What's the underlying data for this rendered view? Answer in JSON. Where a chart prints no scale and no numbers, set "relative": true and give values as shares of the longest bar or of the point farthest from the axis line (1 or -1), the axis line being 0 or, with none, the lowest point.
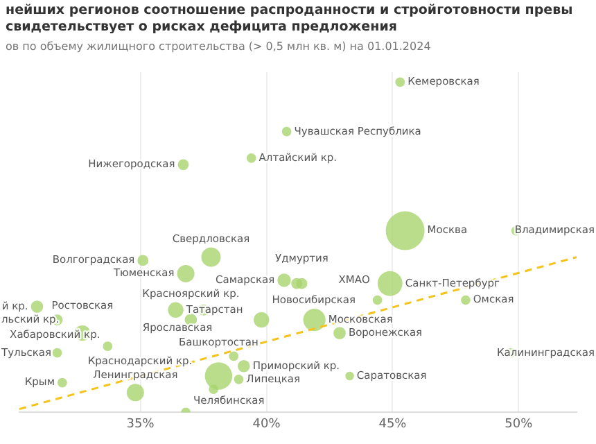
{
  "chart_data": {
    "type": "bubble",
    "title": "нейших регионов соотношение распроданности и стройготовности превы свидетельствует о рисках дефицита предложения",
    "subtitle": "ов по объему жилищного строительства (> 0,5 млн кв. м) на 01.01.2024",
    "relative": true,
    "xlim": [
      30.2,
      52.3
    ],
    "xticks": [
      {
        "value": 35,
        "label": "35%"
      },
      {
        "value": 40,
        "label": "40%"
      },
      {
        "value": 45,
        "label": "45%"
      },
      {
        "value": 50,
        "label": "50%"
      }
    ],
    "grid": "x",
    "legend": false,
    "series": [
      {
        "type": "bubble",
        "color": "#a9d46f",
        "x": [
          45.3,
          40.8,
          39.4,
          36.7,
          45.5,
          49.9,
          35.1,
          37.8,
          36.8,
          40.7,
          41.2,
          41.4,
          44.9,
          44.4,
          47.9,
          36.4,
          37.5,
          37.0,
          39.8,
          41.9,
          42.9,
          30.9,
          31.7,
          32.7,
          33.7,
          31.7,
          38.7,
          39.1,
          49.7,
          43.3,
          38.1,
          38.9,
          37.9,
          31.9,
          34.8,
          36.8
        ],
        "values": [
          1.0,
          0.85,
          0.77,
          0.75,
          0.55,
          0.55,
          0.46,
          0.47,
          0.42,
          0.4,
          0.39,
          0.39,
          0.39,
          0.34,
          0.34,
          0.31,
          0.31,
          0.28,
          0.28,
          0.28,
          0.24,
          0.32,
          0.28,
          0.24,
          0.2,
          0.18,
          0.17,
          0.14,
          0.18,
          0.11,
          0.11,
          0.1,
          0.07,
          0.09,
          0.06,
          0.0
        ],
        "sizes": [
          0.06,
          0.06,
          0.06,
          0.08,
          1.0,
          0.06,
          0.08,
          0.25,
          0.2,
          0.12,
          0.08,
          0.08,
          0.41,
          0.06,
          0.06,
          0.16,
          0.08,
          0.1,
          0.16,
          0.33,
          0.1,
          0.1,
          0.08,
          0.16,
          0.06,
          0.06,
          0.06,
          0.1,
          0.06,
          0.05,
          0.5,
          0.06,
          0.06,
          0.06,
          0.2,
          0.06
        ]
      },
      {
        "type": "line",
        "color": "#f5c31a",
        "line_style": "dashed",
        "marker": "none",
        "x": [
          30.2,
          52.3
        ],
        "values": [
          0.01,
          0.47
        ]
      }
    ],
    "annotations": [
      {
        "text": "Кемеровская",
        "x": 45.3,
        "y": 1.0
      },
      {
        "text": "Чувашская Республика",
        "x": 40.8,
        "y": 0.85
      },
      {
        "text": "Алтайский кр.",
        "x": 39.4,
        "y": 0.77
      },
      {
        "text": "Нижегородская",
        "x": 36.7,
        "y": 0.75
      },
      {
        "text": "Москва",
        "x": 45.5,
        "y": 0.55
      },
      {
        "text": "Владимирская",
        "x": 49.9,
        "y": 0.55
      },
      {
        "text": "Волгоградская",
        "x": 35.1,
        "y": 0.46
      },
      {
        "text": "Свердловская",
        "x": 37.8,
        "y": 0.47
      },
      {
        "text": "Тюменская",
        "x": 36.8,
        "y": 0.42
      },
      {
        "text": "Самарская",
        "x": 40.7,
        "y": 0.4
      },
      {
        "text": "Удмуртия",
        "x": 41.4,
        "y": 0.39
      },
      {
        "text": "Санкт-Петербург",
        "x": 44.9,
        "y": 0.39
      },
      {
        "text": "ХМАО",
        "x": 44.4,
        "y": 0.34
      },
      {
        "text": "Омская",
        "x": 47.9,
        "y": 0.34
      },
      {
        "text": "Татарстан",
        "x": 36.4,
        "y": 0.31
      },
      {
        "text": "Красноярский кр.",
        "x": 37.0,
        "y": 0.28
      },
      {
        "text": "Новосибирская",
        "x": 39.8,
        "y": 0.28
      },
      {
        "text": "Московская",
        "x": 41.9,
        "y": 0.28
      },
      {
        "text": "Воронежская",
        "x": 42.9,
        "y": 0.24
      },
      {
        "text": "й кр.",
        "x": 30.9,
        "y": 0.32
      },
      {
        "text": "льский кр.",
        "x": 31.7,
        "y": 0.28
      },
      {
        "text": "Ростовская",
        "x": 32.7,
        "y": 0.24
      },
      {
        "text": "Хабаровский кр.",
        "x": 33.7,
        "y": 0.2
      },
      {
        "text": "Тульская",
        "x": 31.7,
        "y": 0.18
      },
      {
        "text": "Ярославская",
        "x": 38.7,
        "y": 0.17
      },
      {
        "text": "Приморский кр.",
        "x": 39.1,
        "y": 0.14
      },
      {
        "text": "Калининградская",
        "x": 49.7,
        "y": 0.18
      },
      {
        "text": "Саратовская",
        "x": 43.3,
        "y": 0.11
      },
      {
        "text": "Башкортостан",
        "x": 38.1,
        "y": 0.11
      },
      {
        "text": "Липецкая",
        "x": 38.9,
        "y": 0.1
      },
      {
        "text": "Краснодарский кр.",
        "x": 37.9,
        "y": 0.07
      },
      {
        "text": "Крым",
        "x": 31.9,
        "y": 0.09
      },
      {
        "text": "Ленинградская",
        "x": 34.8,
        "y": 0.06
      },
      {
        "text": "Челябинская",
        "x": 36.8,
        "y": 0.0
      }
    ]
  }
}
